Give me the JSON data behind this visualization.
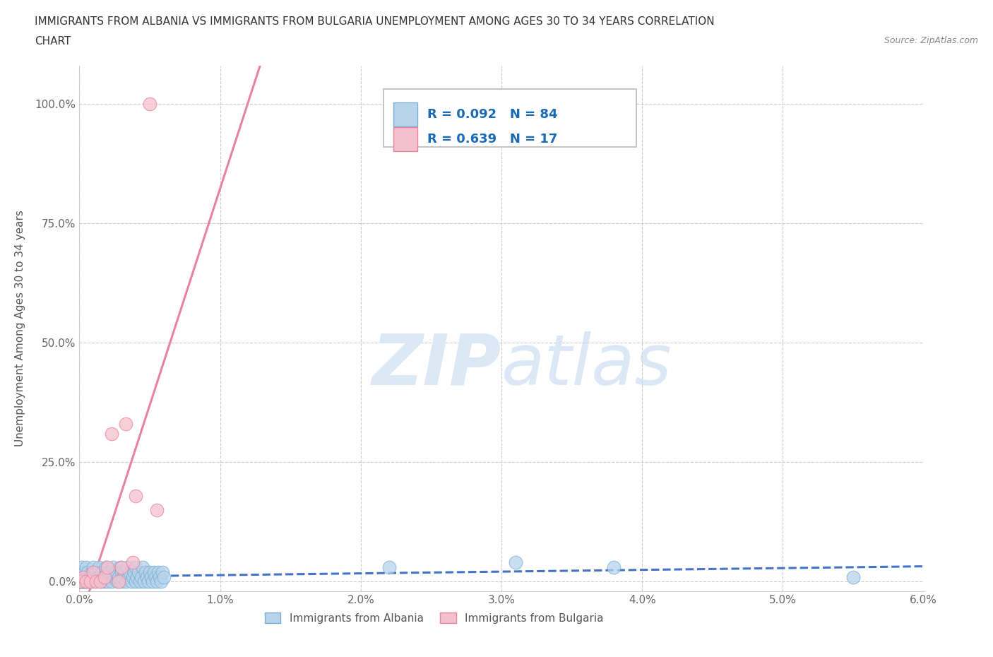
{
  "title_line1": "IMMIGRANTS FROM ALBANIA VS IMMIGRANTS FROM BULGARIA UNEMPLOYMENT AMONG AGES 30 TO 34 YEARS CORRELATION",
  "title_line2": "CHART",
  "source_text": "Source: ZipAtlas.com",
  "ylabel": "Unemployment Among Ages 30 to 34 years",
  "xlim": [
    0.0,
    0.06
  ],
  "ylim": [
    -0.02,
    1.08
  ],
  "xticks": [
    0.0,
    0.01,
    0.02,
    0.03,
    0.04,
    0.05,
    0.06
  ],
  "xticklabels": [
    "0.0%",
    "1.0%",
    "2.0%",
    "3.0%",
    "4.0%",
    "5.0%",
    "6.0%"
  ],
  "yticks": [
    0.0,
    0.25,
    0.5,
    0.75,
    1.0
  ],
  "yticklabels": [
    "0.0%",
    "25.0%",
    "50.0%",
    "75.0%",
    "100.0%"
  ],
  "albania_color": "#b8d4eb",
  "albania_edge_color": "#7aafd4",
  "bulgaria_color": "#f5c0ce",
  "bulgaria_edge_color": "#e8839e",
  "albania_R": 0.092,
  "albania_N": 84,
  "bulgaria_R": 0.639,
  "bulgaria_N": 17,
  "albania_line_color": "#4472C4",
  "bulgaria_line_color": "#e8839e",
  "legend_text_color": "#1a6bb5",
  "watermark_zip": "ZIP",
  "watermark_atlas": "atlas",
  "grid_color": "#cccccc",
  "albania_x": [
    0.0,
    0.0001,
    0.0001,
    0.0001,
    0.0002,
    0.0002,
    0.0003,
    0.0003,
    0.0004,
    0.0004,
    0.0005,
    0.0005,
    0.0006,
    0.0006,
    0.0007,
    0.0008,
    0.0009,
    0.001,
    0.001,
    0.0011,
    0.0012,
    0.0013,
    0.0014,
    0.0015,
    0.0016,
    0.0017,
    0.0018,
    0.0019,
    0.002,
    0.002,
    0.0021,
    0.0022,
    0.0023,
    0.0024,
    0.0025,
    0.0026,
    0.0027,
    0.0028,
    0.0029,
    0.003,
    0.003,
    0.0031,
    0.0032,
    0.0033,
    0.0034,
    0.0035,
    0.0036,
    0.0037,
    0.0038,
    0.0039,
    0.004,
    0.004,
    0.0041,
    0.0042,
    0.0043,
    0.0044,
    0.0045,
    0.0046,
    0.0047,
    0.0048,
    0.0049,
    0.005,
    0.0051,
    0.0052,
    0.0053,
    0.0054,
    0.0055,
    0.0056,
    0.0057,
    0.0058,
    0.0059,
    0.006,
    0.0,
    0.0,
    0.0,
    0.0001,
    0.0002,
    0.0003,
    0.0004,
    0.0005,
    0.031,
    0.055,
    0.022,
    0.038
  ],
  "albania_y": [
    0.0,
    0.01,
    0.0,
    0.02,
    0.0,
    0.03,
    0.01,
    0.0,
    0.02,
    0.0,
    0.03,
    0.01,
    0.0,
    0.02,
    0.01,
    0.0,
    0.02,
    0.01,
    0.03,
    0.0,
    0.02,
    0.01,
    0.03,
    0.0,
    0.02,
    0.01,
    0.0,
    0.03,
    0.01,
    0.0,
    0.02,
    0.01,
    0.0,
    0.03,
    0.01,
    0.02,
    0.0,
    0.01,
    0.03,
    0.02,
    0.0,
    0.01,
    0.02,
    0.0,
    0.03,
    0.01,
    0.02,
    0.0,
    0.01,
    0.02,
    0.03,
    0.0,
    0.01,
    0.02,
    0.0,
    0.01,
    0.03,
    0.0,
    0.02,
    0.01,
    0.0,
    0.02,
    0.01,
    0.0,
    0.02,
    0.01,
    0.0,
    0.02,
    0.01,
    0.0,
    0.02,
    0.01,
    0.0,
    0.0,
    0.0,
    0.0,
    0.0,
    0.0,
    0.0,
    0.0,
    0.04,
    0.01,
    0.03,
    0.03
  ],
  "bulgaria_x": [
    0.0001,
    0.0003,
    0.0005,
    0.0008,
    0.001,
    0.0012,
    0.0015,
    0.0018,
    0.002,
    0.0023,
    0.0028,
    0.003,
    0.0033,
    0.0038,
    0.004,
    0.005,
    0.0055
  ],
  "bulgaria_y": [
    0.0,
    0.01,
    0.0,
    0.0,
    0.02,
    0.0,
    0.0,
    0.01,
    0.03,
    0.31,
    0.0,
    0.03,
    0.33,
    0.04,
    0.18,
    1.0,
    0.15
  ]
}
